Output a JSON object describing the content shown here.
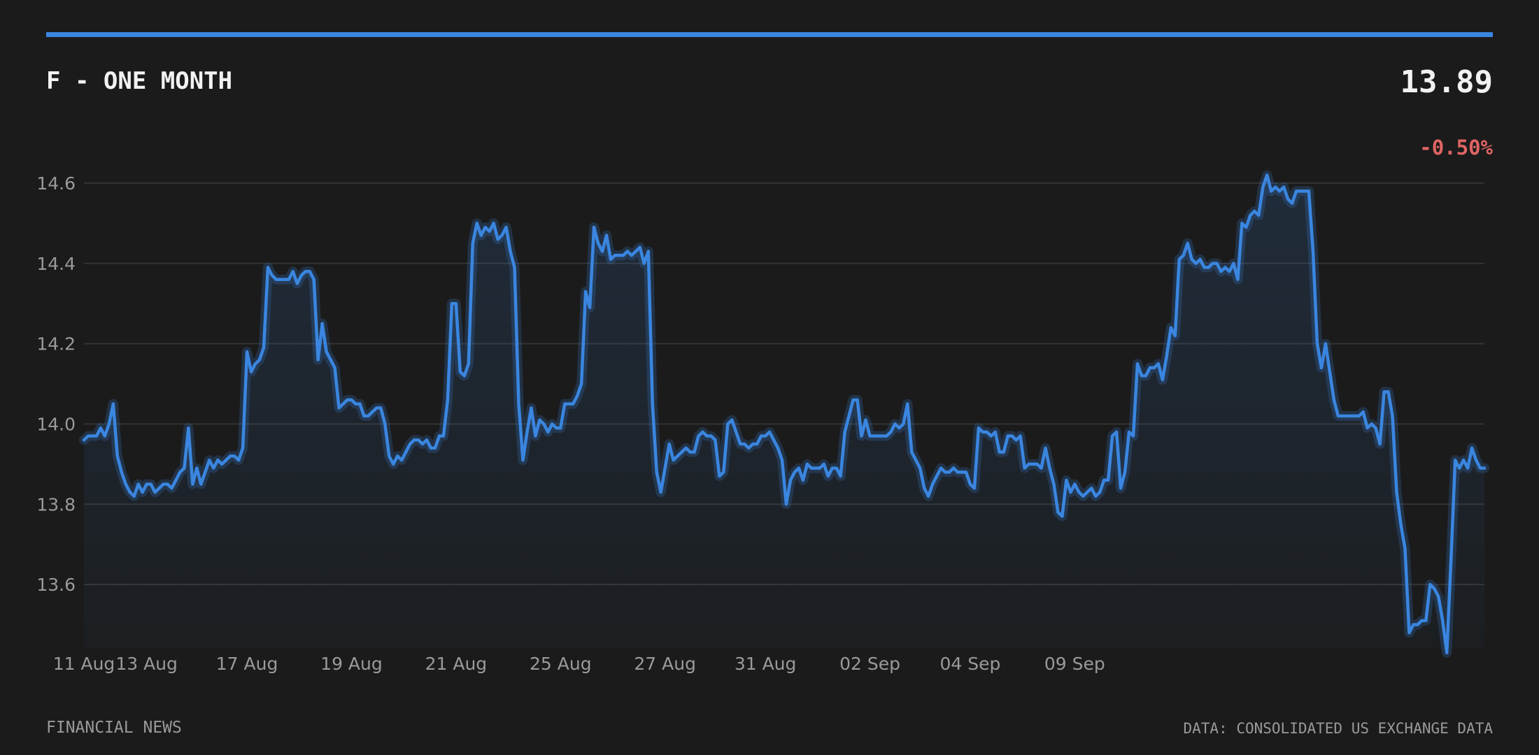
{
  "header": {
    "title": "F - ONE MONTH",
    "price": "13.89",
    "change": "-0.50%"
  },
  "footer": {
    "source_left": "FINANCIAL NEWS",
    "source_right": "DATA: CONSOLIDATED US EXCHANGE DATA"
  },
  "colors": {
    "background": "#1b1b1b",
    "accent": "#3a86e0",
    "negative": "#e06464",
    "text": "#f2f2f2",
    "muted": "#9a9a9a",
    "grid": "#333333"
  },
  "chart_data": {
    "type": "area",
    "title": "F - ONE MONTH",
    "xlabel": "",
    "ylabel": "",
    "grid": true,
    "ylim": [
      13.44,
      14.68
    ],
    "y_ticks": [
      13.6,
      13.8,
      14.0,
      14.2,
      14.4,
      14.6
    ],
    "x_tick_labels": [
      "11 Aug",
      "13 Aug",
      "17 Aug",
      "19 Aug",
      "21 Aug",
      "25 Aug",
      "27 Aug",
      "31 Aug",
      "02 Sep",
      "04 Sep",
      "09 Sep"
    ],
    "x_tick_index": [
      0,
      15,
      39,
      64,
      89,
      114,
      139,
      163,
      188,
      212,
      237
    ],
    "series": [
      {
        "values": [
          13.96,
          13.97,
          13.97,
          13.97,
          13.99,
          13.97,
          14.0,
          14.05,
          13.92,
          13.88,
          13.85,
          13.83,
          13.82,
          13.85,
          13.83,
          13.85,
          13.85,
          13.83,
          13.84,
          13.85,
          13.85,
          13.84,
          13.86,
          13.88,
          13.89,
          13.99,
          13.85,
          13.89,
          13.85,
          13.88,
          13.91,
          13.89,
          13.91,
          13.9,
          13.91,
          13.92,
          13.92,
          13.91,
          13.94,
          14.18,
          14.13,
          14.15,
          14.16,
          14.19,
          14.39,
          14.37,
          14.36,
          14.36,
          14.36,
          14.36,
          14.38,
          14.35,
          14.37,
          14.38,
          14.38,
          14.36,
          14.16,
          14.25,
          14.18,
          14.16,
          14.14,
          14.04,
          14.05,
          14.06,
          14.06,
          14.05,
          14.05,
          14.02,
          14.02,
          14.03,
          14.04,
          14.04,
          14.0,
          13.92,
          13.9,
          13.92,
          13.91,
          13.93,
          13.95,
          13.96,
          13.96,
          13.95,
          13.96,
          13.94,
          13.94,
          13.97,
          13.97,
          14.06,
          14.3,
          14.3,
          14.13,
          14.12,
          14.15,
          14.45,
          14.5,
          14.47,
          14.49,
          14.48,
          14.5,
          14.46,
          14.47,
          14.49,
          14.43,
          14.39,
          14.05,
          13.91,
          13.98,
          14.04,
          13.97,
          14.01,
          14.0,
          13.98,
          14.0,
          13.99,
          13.99,
          14.05,
          14.05,
          14.05,
          14.07,
          14.1,
          14.33,
          14.29,
          14.49,
          14.45,
          14.43,
          14.47,
          14.41,
          14.42,
          14.42,
          14.42,
          14.43,
          14.42,
          14.43,
          14.44,
          14.4,
          14.43,
          14.05,
          13.88,
          13.83,
          13.89,
          13.95,
          13.91,
          13.92,
          13.93,
          13.94,
          13.93,
          13.93,
          13.97,
          13.98,
          13.97,
          13.97,
          13.96,
          13.87,
          13.88,
          14.0,
          14.01,
          13.98,
          13.95,
          13.95,
          13.94,
          13.95,
          13.95,
          13.97,
          13.97,
          13.98,
          13.96,
          13.94,
          13.91,
          13.8,
          13.86,
          13.88,
          13.89,
          13.86,
          13.9,
          13.89,
          13.89,
          13.89,
          13.9,
          13.87,
          13.89,
          13.89,
          13.87,
          13.98,
          14.02,
          14.06,
          14.06,
          13.97,
          14.01,
          13.97,
          13.97,
          13.97,
          13.97,
          13.97,
          13.98,
          14.0,
          13.99,
          14.0,
          14.05,
          13.93,
          13.91,
          13.89,
          13.84,
          13.82,
          13.85,
          13.87,
          13.89,
          13.88,
          13.88,
          13.89,
          13.88,
          13.88,
          13.88,
          13.85,
          13.84,
          13.99,
          13.98,
          13.98,
          13.97,
          13.98,
          13.93,
          13.93,
          13.97,
          13.97,
          13.96,
          13.97,
          13.89,
          13.9,
          13.9,
          13.9,
          13.89,
          13.94,
          13.89,
          13.85,
          13.78,
          13.77,
          13.86,
          13.83,
          13.85,
          13.83,
          13.82,
          13.83,
          13.84,
          13.82,
          13.83,
          13.86,
          13.86,
          13.97,
          13.98,
          13.84,
          13.88,
          13.98,
          13.97,
          14.15,
          14.12,
          14.12,
          14.14,
          14.14,
          14.15,
          14.11,
          14.17,
          14.24,
          14.22,
          14.41,
          14.42,
          14.45,
          14.41,
          14.4,
          14.41,
          14.39,
          14.39,
          14.4,
          14.4,
          14.38,
          14.39,
          14.38,
          14.4,
          14.36,
          14.5,
          14.49,
          14.52,
          14.53,
          14.52,
          14.59,
          14.62,
          14.58,
          14.59,
          14.58,
          14.59,
          14.56,
          14.55,
          14.58,
          14.58,
          14.58,
          14.58,
          14.43,
          14.2,
          14.14,
          14.2,
          14.13,
          14.06,
          14.02,
          14.02,
          14.02,
          14.02,
          14.02,
          14.02,
          14.03,
          13.99,
          14.0,
          13.99,
          13.95,
          14.08,
          14.08,
          14.02,
          13.83,
          13.75,
          13.69,
          13.48,
          13.5,
          13.5,
          13.51,
          13.51,
          13.6,
          13.59,
          13.57,
          13.51,
          13.43,
          13.66,
          13.91,
          13.89,
          13.91,
          13.89,
          13.94,
          13.91,
          13.89,
          13.89
        ]
      }
    ]
  }
}
